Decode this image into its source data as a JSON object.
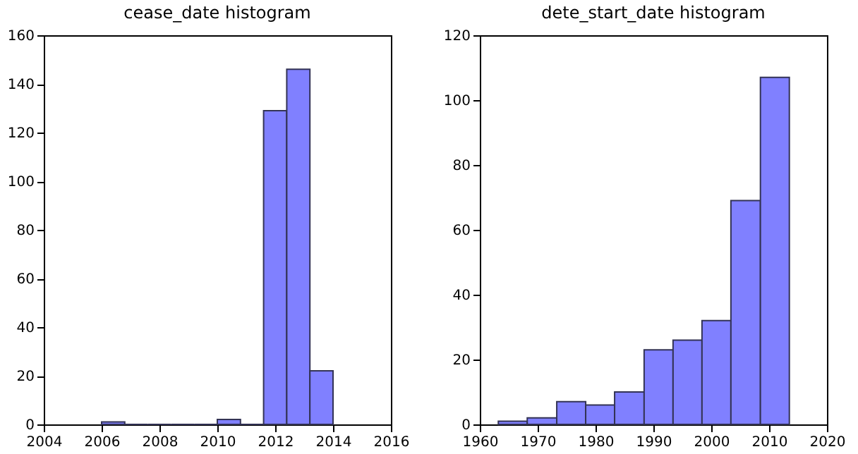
{
  "chart_data": [
    {
      "type": "histogram",
      "title": "cease_date histogram",
      "bins": [
        2006,
        2006.8,
        2007.6,
        2008.4,
        2009.2,
        2010,
        2010.8,
        2011.6,
        2012.4,
        2013.2,
        2014
      ],
      "values": [
        1,
        0,
        0,
        0,
        0,
        2,
        0,
        129,
        146,
        22
      ],
      "color": "#8080ff",
      "xlim": [
        2004,
        2016
      ],
      "xticks": [
        2004,
        2006,
        2008,
        2010,
        2012,
        2014,
        2016
      ],
      "ylim": [
        0,
        160
      ],
      "yticks": [
        0,
        20,
        40,
        60,
        80,
        100,
        120,
        140,
        160
      ],
      "grid": false
    },
    {
      "type": "histogram",
      "title": "dete_start_date histogram",
      "bins": [
        1963.2,
        1968.2,
        1973.3,
        1978.3,
        1983.3,
        1988.4,
        1993.4,
        1998.4,
        2003.4,
        2008.5,
        2013.5
      ],
      "values": [
        1,
        2,
        7,
        6,
        10,
        23,
        26,
        32,
        69,
        107
      ],
      "color": "#8080ff",
      "xlim": [
        1960,
        2020
      ],
      "xticks": [
        1960,
        1970,
        1980,
        1990,
        2000,
        2010,
        2020
      ],
      "ylim": [
        0,
        120
      ],
      "yticks": [
        0,
        20,
        40,
        60,
        80,
        100,
        120
      ],
      "grid": false
    }
  ]
}
